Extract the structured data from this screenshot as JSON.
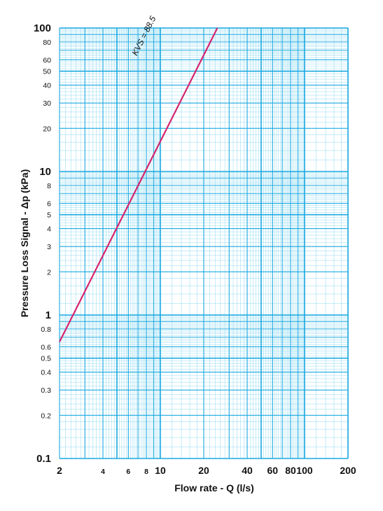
{
  "chart_data": {
    "type": "line",
    "title": "",
    "xlabel": "Flow rate - Q (l/s)",
    "ylabel": "Pressure Loss Signal  - Δp (kPa)",
    "xscale": "log",
    "yscale": "log",
    "xlim": [
      2,
      200
    ],
    "ylim": [
      0.1,
      100
    ],
    "grid": true,
    "grid_color": "#1ba9e0",
    "minor_grid_color": "#8fd8f2",
    "line_color": "#d6246e",
    "x_ticks": [
      {
        "value": 2,
        "label": "2"
      },
      {
        "value": 4,
        "label": "4"
      },
      {
        "value": 6,
        "label": "6"
      },
      {
        "value": 8,
        "label": "8"
      },
      {
        "value": 10,
        "label": "10"
      },
      {
        "value": 20,
        "label": "20"
      },
      {
        "value": 40,
        "label": "40"
      },
      {
        "value": 60,
        "label": "60"
      },
      {
        "value": 80,
        "label": "80"
      },
      {
        "value": 100,
        "label": "100"
      },
      {
        "value": 200,
        "label": "200"
      }
    ],
    "y_ticks": [
      {
        "value": 0.1,
        "label": "0.1"
      },
      {
        "value": 0.2,
        "label": "0.2"
      },
      {
        "value": 0.3,
        "label": "0.3"
      },
      {
        "value": 0.4,
        "label": "0.4"
      },
      {
        "value": 0.5,
        "label": "0.5"
      },
      {
        "value": 0.6,
        "label": "0.6"
      },
      {
        "value": 0.8,
        "label": "0.8"
      },
      {
        "value": 1,
        "label": "1"
      },
      {
        "value": 2,
        "label": "2"
      },
      {
        "value": 3,
        "label": "3"
      },
      {
        "value": 4,
        "label": "4"
      },
      {
        "value": 5,
        "label": "5"
      },
      {
        "value": 6,
        "label": "6"
      },
      {
        "value": 8,
        "label": "8"
      },
      {
        "value": 10,
        "label": "10"
      },
      {
        "value": 20,
        "label": "20"
      },
      {
        "value": 30,
        "label": "30"
      },
      {
        "value": 40,
        "label": "40"
      },
      {
        "value": 50,
        "label": "50"
      },
      {
        "value": 60,
        "label": "60"
      },
      {
        "value": 80,
        "label": "80"
      },
      {
        "value": 100,
        "label": "100"
      }
    ],
    "series": [
      {
        "name": "KVS = 88.5",
        "kvs": 88.5,
        "points": [
          {
            "x": 2.0,
            "y": 0.65
          },
          {
            "x": 24.85,
            "y": 100
          }
        ]
      }
    ]
  }
}
